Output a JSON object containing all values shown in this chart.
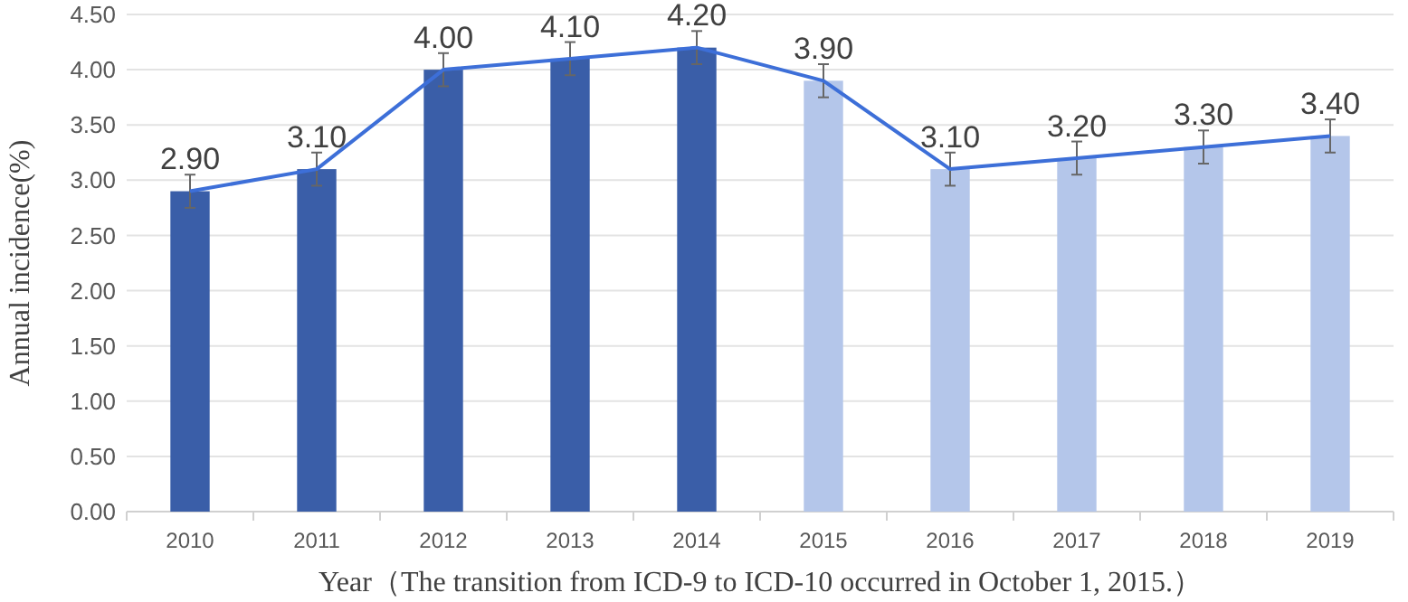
{
  "chart_data": {
    "type": "bar",
    "xlabel": "Year（The transition from ICD-9 to ICD-10 occurred in October 1, 2015.）",
    "ylabel": "Annual incidence(%)",
    "categories": [
      "2010",
      "2011",
      "2012",
      "2013",
      "2014",
      "2015",
      "2016",
      "2017",
      "2018",
      "2019"
    ],
    "series": [
      {
        "colors": [
          "#3a5ea8",
          "#3a5ea8",
          "#3a5ea8",
          "#3a5ea8",
          "#3a5ea8",
          "#b4c6ea",
          "#b4c6ea",
          "#b4c6ea",
          "#b4c6ea",
          "#b4c6ea"
        ],
        "values": [
          2.9,
          3.1,
          4.0,
          4.1,
          4.2,
          3.9,
          3.1,
          3.2,
          3.3,
          3.4
        ],
        "errors": [
          0.15,
          0.15,
          0.15,
          0.15,
          0.15,
          0.15,
          0.15,
          0.15,
          0.15,
          0.15
        ],
        "value_labels": [
          "2.90",
          "3.10",
          "4.00",
          "4.10",
          "4.20",
          "3.90",
          "3.10",
          "3.20",
          "3.30",
          "3.40"
        ]
      },
      {
        "type": "line",
        "color": "#3d6fd8",
        "values": [
          2.9,
          3.1,
          4.0,
          4.1,
          4.2,
          3.9,
          3.1,
          3.2,
          3.3,
          3.4
        ]
      }
    ],
    "ylim": [
      0,
      4.5
    ],
    "yticks": [
      {
        "value": 0,
        "label": "0.00"
      },
      {
        "value": 0.5,
        "label": "0.50"
      },
      {
        "value": 1,
        "label": "1.00"
      },
      {
        "value": 1.5,
        "label": "1.50"
      },
      {
        "value": 2,
        "label": "2.00"
      },
      {
        "value": 2.5,
        "label": "2.50"
      },
      {
        "value": 3,
        "label": "3.00"
      },
      {
        "value": 3.5,
        "label": "3.50"
      },
      {
        "value": 4,
        "label": "4.00"
      },
      {
        "value": 4.5,
        "label": "4.50"
      }
    ],
    "grid": "y",
    "marker": "none",
    "line_style": "solid"
  }
}
